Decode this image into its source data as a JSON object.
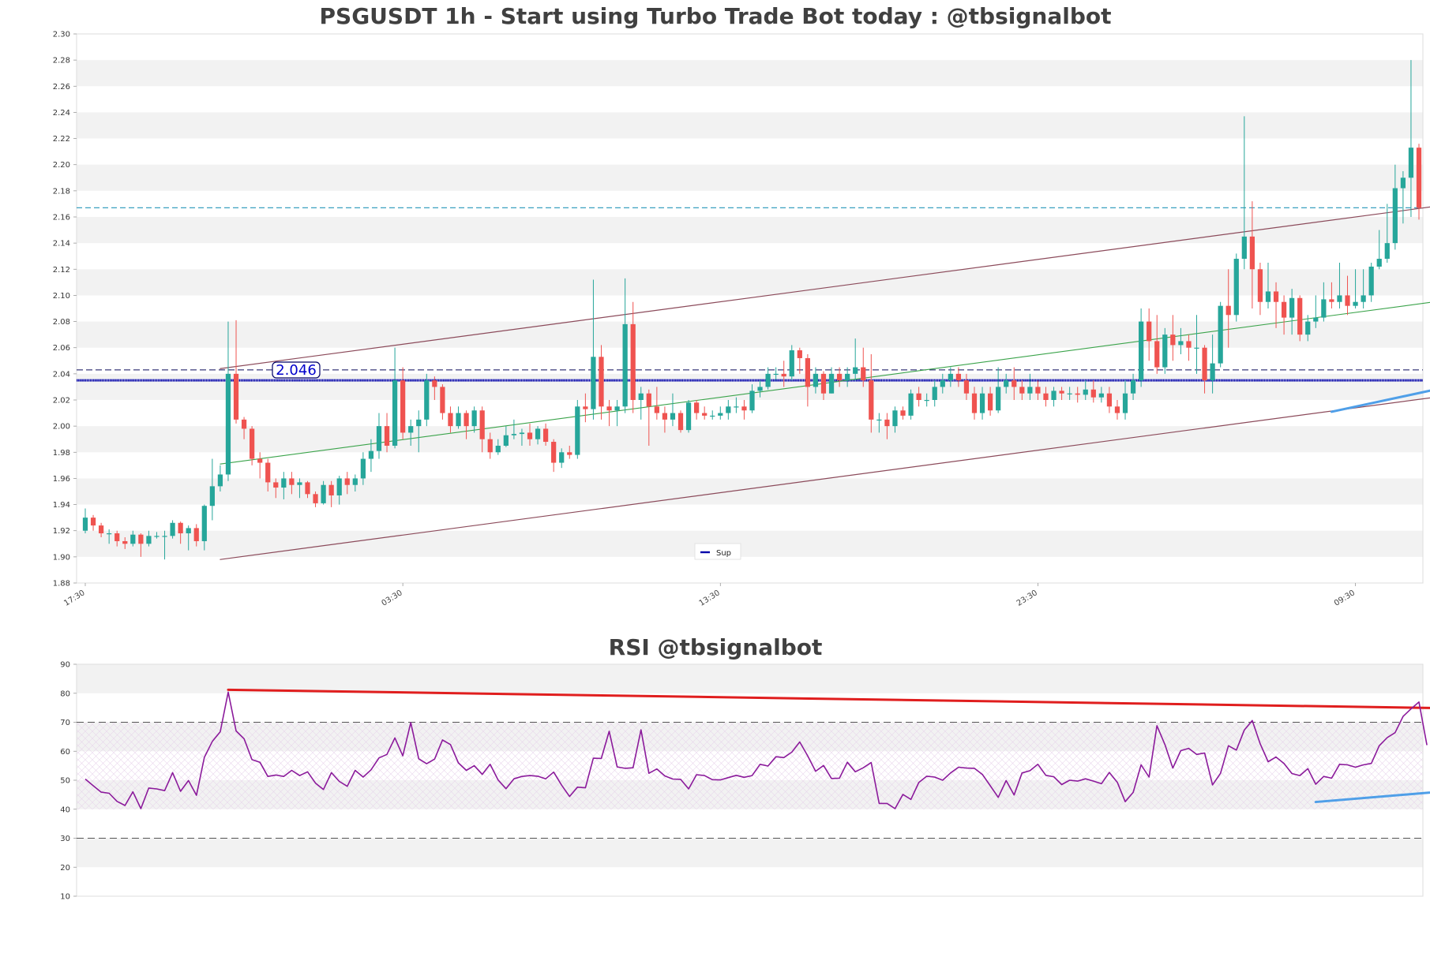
{
  "colors": {
    "up": "#26a69a",
    "down": "#ef5350",
    "channel": "#8b4a5a",
    "midline": "#3aa34a",
    "trendline": "#4f9fe8",
    "rsi_line": "#8b1a9b",
    "rsi_resistance": "#e01e1e",
    "support_line": "#0000aa",
    "cyan_dashed": "#3aa0c0",
    "band_grey": "#f2f2f2",
    "title": "#404040"
  },
  "chart_data": [
    {
      "type": "candlestick",
      "title": "PSGUSDT 1h - Start using Turbo Trade Bot today : @tbsignalbot",
      "ylim": [
        1.88,
        2.3
      ],
      "ytick_labels": [
        "1.88",
        "1.90",
        "1.92",
        "1.94",
        "1.96",
        "1.98",
        "2.00",
        "2.02",
        "2.04",
        "2.06",
        "2.08",
        "2.10",
        "2.12",
        "2.14",
        "2.16",
        "2.18",
        "2.20",
        "2.22",
        "2.24",
        "2.26",
        "2.28",
        "2.30"
      ],
      "xtick_labels": [
        "17:30",
        "03:30",
        "13:30",
        "23:30",
        "09:30"
      ],
      "xtick_index": [
        0,
        40,
        80,
        120,
        160
      ],
      "grid": "alternating horizontal bands",
      "legend": {
        "placement": "lower-center",
        "entries": [
          "Sup"
        ]
      },
      "annotation": "2.046",
      "support_level": 2.035,
      "dashed_levels": [
        2.043,
        2.167
      ],
      "channel_upper": {
        "x": [
          17,
          197
        ],
        "y": [
          2.044,
          2.19
        ]
      },
      "channel_lower": {
        "x": [
          17,
          197
        ],
        "y": [
          1.898,
          2.044
        ]
      },
      "channel_mid": {
        "x": [
          17,
          197
        ],
        "y": [
          1.971,
          2.117
        ]
      },
      "trendline": {
        "x": [
          157,
          197
        ],
        "y": [
          2.011,
          2.063
        ]
      },
      "candles": [
        [
          1.92,
          1.93,
          1.937,
          1.918
        ],
        [
          1.93,
          1.924,
          1.932,
          1.92
        ],
        [
          1.924,
          1.918,
          1.926,
          1.915
        ],
        [
          1.918,
          1.918,
          1.921,
          1.91
        ],
        [
          1.918,
          1.912,
          1.92,
          1.908
        ],
        [
          1.912,
          1.91,
          1.915,
          1.906
        ],
        [
          1.91,
          1.917,
          1.92,
          1.908
        ],
        [
          1.917,
          1.91,
          1.918,
          1.9
        ],
        [
          1.91,
          1.916,
          1.92,
          1.908
        ],
        [
          1.916,
          1.916,
          1.919,
          1.914
        ],
        [
          1.916,
          1.916,
          1.92,
          1.898
        ],
        [
          1.916,
          1.926,
          1.928,
          1.914
        ],
        [
          1.926,
          1.918,
          1.927,
          1.91
        ],
        [
          1.918,
          1.922,
          1.924,
          1.905
        ],
        [
          1.922,
          1.912,
          1.925,
          1.908
        ],
        [
          1.912,
          1.939,
          1.94,
          1.905
        ],
        [
          1.939,
          1.954,
          1.975,
          1.928
        ],
        [
          1.954,
          1.963,
          1.97,
          1.95
        ],
        [
          1.963,
          2.04,
          2.08,
          1.958
        ],
        [
          2.04,
          2.005,
          2.081,
          2.002
        ],
        [
          2.005,
          1.998,
          2.007,
          1.99
        ],
        [
          1.998,
          1.975,
          2.0,
          1.97
        ],
        [
          1.975,
          1.972,
          1.98,
          1.96
        ],
        [
          1.972,
          1.957,
          1.975,
          1.95
        ],
        [
          1.957,
          1.953,
          1.96,
          1.945
        ],
        [
          1.953,
          1.96,
          1.965,
          1.944
        ],
        [
          1.96,
          1.955,
          1.965,
          1.948
        ],
        [
          1.955,
          1.957,
          1.96,
          1.945
        ],
        [
          1.957,
          1.948,
          1.958,
          1.945
        ],
        [
          1.948,
          1.941,
          1.95,
          1.938
        ],
        [
          1.941,
          1.955,
          1.958,
          1.94
        ],
        [
          1.955,
          1.947,
          1.958,
          1.938
        ],
        [
          1.947,
          1.96,
          1.962,
          1.94
        ],
        [
          1.96,
          1.955,
          1.965,
          1.948
        ],
        [
          1.955,
          1.96,
          1.963,
          1.95
        ],
        [
          1.96,
          1.975,
          1.98,
          1.955
        ],
        [
          1.975,
          1.981,
          1.99,
          1.965
        ],
        [
          1.981,
          2.0,
          2.01,
          1.975
        ],
        [
          2.0,
          1.985,
          2.01,
          1.98
        ],
        [
          1.985,
          2.035,
          2.06,
          1.983
        ],
        [
          2.035,
          1.995,
          2.045,
          1.99
        ],
        [
          1.995,
          2.0,
          2.005,
          1.985
        ],
        [
          2.0,
          2.005,
          2.012,
          1.98
        ],
        [
          2.005,
          2.035,
          2.04,
          2.0
        ],
        [
          2.035,
          2.03,
          2.038,
          2.02
        ],
        [
          2.03,
          2.01,
          2.032,
          2.005
        ],
        [
          2.01,
          2.0,
          2.015,
          1.995
        ],
        [
          2.0,
          2.01,
          2.015,
          1.998
        ],
        [
          2.01,
          2.0,
          2.012,
          1.99
        ],
        [
          2.0,
          2.012,
          2.015,
          1.995
        ],
        [
          2.012,
          1.99,
          2.015,
          1.98
        ],
        [
          1.99,
          1.98,
          1.995,
          1.975
        ],
        [
          1.98,
          1.985,
          1.99,
          1.978
        ],
        [
          1.985,
          1.993,
          2.0,
          1.984
        ],
        [
          1.993,
          1.994,
          2.005,
          1.99
        ],
        [
          1.994,
          1.995,
          1.998,
          1.985
        ],
        [
          1.995,
          1.99,
          2.002,
          1.985
        ],
        [
          1.99,
          1.998,
          2.0,
          1.986
        ],
        [
          1.998,
          1.988,
          2.002,
          1.985
        ],
        [
          1.988,
          1.972,
          1.99,
          1.965
        ],
        [
          1.972,
          1.98,
          1.983,
          1.968
        ],
        [
          1.98,
          1.978,
          1.985,
          1.975
        ],
        [
          1.978,
          2.015,
          2.02,
          1.975
        ],
        [
          2.015,
          2.013,
          2.025,
          2.003
        ],
        [
          2.013,
          2.053,
          2.112,
          2.005
        ],
        [
          2.053,
          2.015,
          2.062,
          2.005
        ],
        [
          2.015,
          2.012,
          2.02,
          2.0
        ],
        [
          2.012,
          2.015,
          2.02,
          2.0
        ],
        [
          2.015,
          2.078,
          2.113,
          2.01
        ],
        [
          2.078,
          2.02,
          2.095,
          2.01
        ],
        [
          2.02,
          2.025,
          2.03,
          2.005
        ],
        [
          2.025,
          2.015,
          2.028,
          1.985
        ],
        [
          2.015,
          2.01,
          2.03,
          2.005
        ],
        [
          2.01,
          2.005,
          2.015,
          1.995
        ],
        [
          2.005,
          2.01,
          2.025,
          2.0
        ],
        [
          2.01,
          1.997,
          2.012,
          1.995
        ],
        [
          1.997,
          2.018,
          2.02,
          1.995
        ],
        [
          2.018,
          2.01,
          2.02,
          2.005
        ],
        [
          2.01,
          2.008,
          2.015,
          2.005
        ],
        [
          2.008,
          2.008,
          2.012,
          2.005
        ],
        [
          2.008,
          2.01,
          2.015,
          2.005
        ],
        [
          2.01,
          2.015,
          2.02,
          2.005
        ],
        [
          2.015,
          2.015,
          2.022,
          2.01
        ],
        [
          2.015,
          2.012,
          2.02,
          2.005
        ],
        [
          2.012,
          2.027,
          2.032,
          2.01
        ],
        [
          2.027,
          2.03,
          2.035,
          2.022
        ],
        [
          2.03,
          2.04,
          2.045,
          2.028
        ],
        [
          2.04,
          2.04,
          2.045,
          2.035
        ],
        [
          2.04,
          2.038,
          2.05,
          2.03
        ],
        [
          2.038,
          2.058,
          2.062,
          2.035
        ],
        [
          2.058,
          2.052,
          2.06,
          2.04
        ],
        [
          2.052,
          2.03,
          2.055,
          2.015
        ],
        [
          2.03,
          2.04,
          2.045,
          2.025
        ],
        [
          2.04,
          2.025,
          2.042,
          2.02
        ],
        [
          2.025,
          2.04,
          2.045,
          2.025
        ],
        [
          2.04,
          2.035,
          2.045,
          2.03
        ],
        [
          2.035,
          2.04,
          2.045,
          2.03
        ],
        [
          2.04,
          2.045,
          2.067,
          2.035
        ],
        [
          2.045,
          2.035,
          2.06,
          2.03
        ],
        [
          2.035,
          2.005,
          2.055,
          1.995
        ],
        [
          2.005,
          2.005,
          2.01,
          1.995
        ],
        [
          2.005,
          2.0,
          2.01,
          1.99
        ],
        [
          2.0,
          2.012,
          2.015,
          1.995
        ],
        [
          2.012,
          2.008,
          2.015,
          2.005
        ],
        [
          2.008,
          2.025,
          2.028,
          2.005
        ],
        [
          2.025,
          2.02,
          2.03,
          2.015
        ],
        [
          2.02,
          2.02,
          2.025,
          2.015
        ],
        [
          2.02,
          2.03,
          2.035,
          2.015
        ],
        [
          2.03,
          2.035,
          2.04,
          2.025
        ],
        [
          2.035,
          2.04,
          2.045,
          2.03
        ],
        [
          2.04,
          2.035,
          2.045,
          2.03
        ],
        [
          2.035,
          2.025,
          2.04,
          2.02
        ],
        [
          2.025,
          2.01,
          2.03,
          2.005
        ],
        [
          2.01,
          2.025,
          2.03,
          2.005
        ],
        [
          2.025,
          2.012,
          2.03,
          2.008
        ],
        [
          2.012,
          2.03,
          2.045,
          2.01
        ],
        [
          2.03,
          2.035,
          2.04,
          2.025
        ],
        [
          2.035,
          2.03,
          2.045,
          2.02
        ],
        [
          2.03,
          2.025,
          2.035,
          2.02
        ],
        [
          2.025,
          2.03,
          2.04,
          2.02
        ],
        [
          2.03,
          2.025,
          2.035,
          2.02
        ],
        [
          2.025,
          2.02,
          2.03,
          2.015
        ],
        [
          2.02,
          2.027,
          2.03,
          2.015
        ],
        [
          2.027,
          2.025,
          2.03,
          2.02
        ],
        [
          2.025,
          2.025,
          2.03,
          2.02
        ],
        [
          2.025,
          2.024,
          2.03,
          2.018
        ],
        [
          2.024,
          2.028,
          2.035,
          2.02
        ],
        [
          2.028,
          2.022,
          2.035,
          2.018
        ],
        [
          2.022,
          2.025,
          2.03,
          2.018
        ],
        [
          2.025,
          2.015,
          2.03,
          2.01
        ],
        [
          2.015,
          2.01,
          2.02,
          2.005
        ],
        [
          2.01,
          2.025,
          2.035,
          2.005
        ],
        [
          2.025,
          2.035,
          2.04,
          2.02
        ],
        [
          2.035,
          2.08,
          2.09,
          2.03
        ],
        [
          2.08,
          2.065,
          2.09,
          2.05
        ],
        [
          2.065,
          2.045,
          2.085,
          2.04
        ],
        [
          2.045,
          2.07,
          2.075,
          2.04
        ],
        [
          2.07,
          2.062,
          2.085,
          2.05
        ],
        [
          2.062,
          2.065,
          2.075,
          2.055
        ],
        [
          2.065,
          2.06,
          2.07,
          2.05
        ],
        [
          2.06,
          2.06,
          2.085,
          2.04
        ],
        [
          2.06,
          2.035,
          2.062,
          2.025
        ],
        [
          2.035,
          2.048,
          2.07,
          2.025
        ],
        [
          2.048,
          2.092,
          2.095,
          2.045
        ],
        [
          2.092,
          2.085,
          2.12,
          2.06
        ],
        [
          2.085,
          2.128,
          2.132,
          2.08
        ],
        [
          2.128,
          2.145,
          2.237,
          2.12
        ],
        [
          2.145,
          2.12,
          2.172,
          2.09
        ],
        [
          2.12,
          2.095,
          2.125,
          2.085
        ],
        [
          2.095,
          2.103,
          2.125,
          2.09
        ],
        [
          2.103,
          2.095,
          2.11,
          2.075
        ],
        [
          2.095,
          2.083,
          2.1,
          2.07
        ],
        [
          2.083,
          2.098,
          2.105,
          2.07
        ],
        [
          2.098,
          2.07,
          2.1,
          2.065
        ],
        [
          2.07,
          2.08,
          2.085,
          2.065
        ],
        [
          2.08,
          2.083,
          2.1,
          2.075
        ],
        [
          2.083,
          2.097,
          2.11,
          2.08
        ],
        [
          2.097,
          2.095,
          2.11,
          2.09
        ],
        [
          2.095,
          2.1,
          2.125,
          2.09
        ],
        [
          2.1,
          2.092,
          2.115,
          2.085
        ],
        [
          2.092,
          2.095,
          2.12,
          2.09
        ],
        [
          2.095,
          2.1,
          2.12,
          2.09
        ],
        [
          2.1,
          2.122,
          2.125,
          2.095
        ],
        [
          2.122,
          2.128,
          2.15,
          2.12
        ],
        [
          2.128,
          2.14,
          2.17,
          2.125
        ],
        [
          2.14,
          2.182,
          2.2,
          2.135
        ],
        [
          2.182,
          2.19,
          2.195,
          2.155
        ],
        [
          2.19,
          2.213,
          2.28,
          2.16
        ],
        [
          2.213,
          2.167,
          2.216,
          2.158
        ]
      ],
      "notes": "each candle is [open, close, high, low] in USDT"
    },
    {
      "type": "line",
      "title": "RSI @tbsignalbot",
      "ylim": [
        10,
        90
      ],
      "ytick_labels": [
        "10",
        "20",
        "30",
        "40",
        "50",
        "60",
        "70",
        "80",
        "90"
      ],
      "overbought": 70,
      "oversold": 30,
      "resistance": {
        "x": [
          18,
          197
        ],
        "y": [
          81.2,
          73.8
        ]
      },
      "support": {
        "x": [
          155,
          197
        ],
        "y": [
          42.5,
          52.0
        ]
      },
      "values": [
        50.4,
        48.1,
        45.9,
        45.5,
        42.7,
        41.3,
        46.0,
        40.2,
        47.3,
        47.0,
        46.4,
        52.6,
        46.2,
        49.9,
        44.8,
        57.9,
        63.4,
        66.7,
        80.4,
        67.0,
        64.3,
        57.1,
        56.2,
        51.3,
        51.8,
        51.3,
        53.4,
        51.6,
        52.9,
        49.0,
        46.8,
        52.6,
        49.6,
        47.9,
        53.4,
        51.1,
        53.6,
        57.7,
        58.9,
        64.6,
        58.4,
        69.9,
        57.4,
        55.7,
        57.3,
        63.9,
        62.3,
        56.0,
        53.4,
        55.0,
        52.0,
        55.5,
        50.1,
        47.1,
        50.5,
        51.3,
        51.6,
        51.4,
        50.5,
        52.8,
        48.3,
        44.4,
        47.6,
        47.4,
        57.6,
        57.5,
        66.9,
        54.6,
        54.1,
        54.3,
        67.4,
        52.4,
        53.9,
        51.5,
        50.4,
        50.3,
        47.0,
        51.9,
        51.6,
        50.2,
        50.1,
        50.9,
        51.7,
        51.0,
        51.6,
        55.5,
        54.9,
        58.1,
        57.8,
        59.7,
        63.2,
        58.4,
        53.1,
        55.1,
        50.6,
        50.7,
        56.2,
        52.9,
        54.3,
        56.1,
        42.0,
        42.0,
        40.2,
        45.1,
        43.4,
        49.2,
        51.4,
        51.1,
        50.0,
        52.5,
        54.5,
        54.2,
        54.1,
        52.0,
        48.1,
        44.1,
        49.9,
        44.9,
        52.5,
        53.3,
        55.5,
        51.7,
        51.2,
        48.5,
        50.0,
        49.7,
        50.5,
        49.7,
        48.8,
        52.7,
        49.3,
        42.6,
        45.8,
        55.3,
        51.1,
        68.8,
        62.3,
        54.2,
        60.2,
        61.0,
        58.9,
        59.4,
        48.4,
        52.4,
        61.9,
        60.4,
        67.3,
        70.6,
        62.6,
        56.4,
        58.0,
        55.8,
        52.3,
        51.6,
        54.0,
        48.6,
        51.3,
        50.7,
        55.5,
        55.3,
        54.5,
        55.3,
        55.8,
        61.9,
        64.7,
        66.4,
        72.0,
        74.6,
        77.0,
        62.1
      ]
    }
  ],
  "legend_label": "Sup"
}
